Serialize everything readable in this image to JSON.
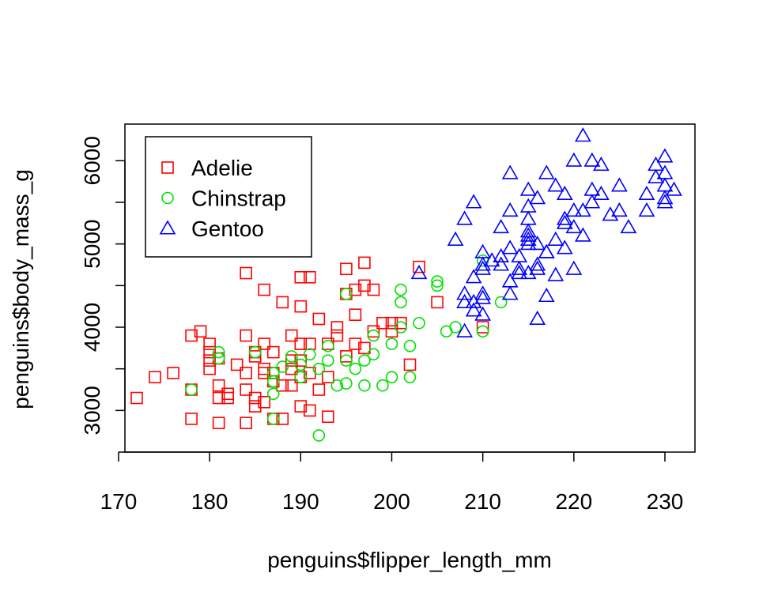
{
  "chart_data": {
    "type": "scatter",
    "title": "",
    "xlabel": "penguins$flipper_length_mm",
    "ylabel": "penguins$body_mass_g",
    "xlim": [
      170.7,
      233.3
    ],
    "ylim": [
      2500,
      6440
    ],
    "x_ticks": [
      170,
      180,
      190,
      200,
      210,
      220,
      230
    ],
    "y_ticks": [
      3000,
      4000,
      5000,
      6000
    ],
    "grid": false,
    "legend_position": "top-left",
    "series": [
      {
        "name": "Adelie",
        "color": "#ff0000",
        "marker": "square",
        "points": [
          [
            172,
            3150
          ],
          [
            174,
            3400
          ],
          [
            176,
            3450
          ],
          [
            178,
            3250
          ],
          [
            178,
            2900
          ],
          [
            178,
            3900
          ],
          [
            179,
            3950
          ],
          [
            180,
            3800
          ],
          [
            180,
            3600
          ],
          [
            180,
            3700
          ],
          [
            180,
            3500
          ],
          [
            181,
            3300
          ],
          [
            181,
            3625
          ],
          [
            181,
            3150
          ],
          [
            181,
            2850
          ],
          [
            182,
            3200
          ],
          [
            182,
            3150
          ],
          [
            183,
            3550
          ],
          [
            184,
            3250
          ],
          [
            184,
            3450
          ],
          [
            184,
            3900
          ],
          [
            184,
            4650
          ],
          [
            184,
            2850
          ],
          [
            185,
            3650
          ],
          [
            185,
            3150
          ],
          [
            185,
            3700
          ],
          [
            185,
            3050
          ],
          [
            186,
            3800
          ],
          [
            186,
            3500
          ],
          [
            186,
            3450
          ],
          [
            186,
            4450
          ],
          [
            186,
            3100
          ],
          [
            187,
            3450
          ],
          [
            187,
            3350
          ],
          [
            187,
            2900
          ],
          [
            187,
            3700
          ],
          [
            188,
            4300
          ],
          [
            188,
            2900
          ],
          [
            188,
            3300
          ],
          [
            189,
            3500
          ],
          [
            189,
            3600
          ],
          [
            189,
            3900
          ],
          [
            189,
            3300
          ],
          [
            190,
            4250
          ],
          [
            190,
            3800
          ],
          [
            190,
            3400
          ],
          [
            190,
            3600
          ],
          [
            190,
            4600
          ],
          [
            190,
            3050
          ],
          [
            191,
            3800
          ],
          [
            191,
            3000
          ],
          [
            191,
            3450
          ],
          [
            191,
            4600
          ],
          [
            192,
            3250
          ],
          [
            192,
            4100
          ],
          [
            193,
            3800
          ],
          [
            193,
            3400
          ],
          [
            193,
            2925
          ],
          [
            194,
            4000
          ],
          [
            194,
            3900
          ],
          [
            195,
            4400
          ],
          [
            195,
            3650
          ],
          [
            195,
            4700
          ],
          [
            196,
            4150
          ],
          [
            196,
            3800
          ],
          [
            196,
            4450
          ],
          [
            197,
            4500
          ],
          [
            197,
            3750
          ],
          [
            197,
            4775
          ],
          [
            198,
            3950
          ],
          [
            198,
            4450
          ],
          [
            199,
            4050
          ],
          [
            200,
            3950
          ],
          [
            200,
            4050
          ],
          [
            201,
            4050
          ],
          [
            202,
            3550
          ],
          [
            203,
            4725
          ],
          [
            205,
            4300
          ],
          [
            210,
            4000
          ]
        ]
      },
      {
        "name": "Chinstrap",
        "color": "#00e000",
        "marker": "circle",
        "points": [
          [
            178,
            3250
          ],
          [
            181,
            3625
          ],
          [
            181,
            3700
          ],
          [
            185,
            3700
          ],
          [
            187,
            3200
          ],
          [
            187,
            3450
          ],
          [
            187,
            3350
          ],
          [
            187,
            2900
          ],
          [
            188,
            3525
          ],
          [
            189,
            3650
          ],
          [
            190,
            3400
          ],
          [
            190,
            3550
          ],
          [
            191,
            3675
          ],
          [
            192,
            2700
          ],
          [
            192,
            3500
          ],
          [
            193,
            3775
          ],
          [
            193,
            3600
          ],
          [
            194,
            3300
          ],
          [
            195,
            3325
          ],
          [
            195,
            3600
          ],
          [
            195,
            4400
          ],
          [
            196,
            3500
          ],
          [
            197,
            3300
          ],
          [
            197,
            3600
          ],
          [
            198,
            3900
          ],
          [
            198,
            3675
          ],
          [
            199,
            3300
          ],
          [
            200,
            3400
          ],
          [
            200,
            3800
          ],
          [
            201,
            4300
          ],
          [
            201,
            4450
          ],
          [
            201,
            4000
          ],
          [
            202,
            3775
          ],
          [
            202,
            3400
          ],
          [
            203,
            4050
          ],
          [
            205,
            4550
          ],
          [
            205,
            4500
          ],
          [
            206,
            3950
          ],
          [
            207,
            4000
          ],
          [
            210,
            4800
          ],
          [
            210,
            3950
          ],
          [
            212,
            4300
          ]
        ]
      },
      {
        "name": "Gentoo",
        "color": "#0000ff",
        "marker": "triangle",
        "points": [
          [
            203,
            4650
          ],
          [
            207,
            5050
          ],
          [
            208,
            4300
          ],
          [
            208,
            3950
          ],
          [
            208,
            4400
          ],
          [
            208,
            5300
          ],
          [
            209,
            4200
          ],
          [
            209,
            4600
          ],
          [
            209,
            4300
          ],
          [
            209,
            5500
          ],
          [
            210,
            4700
          ],
          [
            210,
            4750
          ],
          [
            210,
            4900
          ],
          [
            210,
            4350
          ],
          [
            210,
            4150
          ],
          [
            210,
            4400
          ],
          [
            211,
            4800
          ],
          [
            212,
            4850
          ],
          [
            212,
            4750
          ],
          [
            212,
            5200
          ],
          [
            213,
            4550
          ],
          [
            213,
            4950
          ],
          [
            213,
            5400
          ],
          [
            213,
            5850
          ],
          [
            213,
            4400
          ],
          [
            214,
            4850
          ],
          [
            214,
            4700
          ],
          [
            214,
            4650
          ],
          [
            215,
            5000
          ],
          [
            215,
            5150
          ],
          [
            215,
            5100
          ],
          [
            215,
            4650
          ],
          [
            215,
            5450
          ],
          [
            215,
            5650
          ],
          [
            215,
            5050
          ],
          [
            215,
            5300
          ],
          [
            216,
            5000
          ],
          [
            216,
            4750
          ],
          [
            216,
            4700
          ],
          [
            216,
            4100
          ],
          [
            216,
            5550
          ],
          [
            217,
            4900
          ],
          [
            217,
            4900
          ],
          [
            217,
            5850
          ],
          [
            217,
            4375
          ],
          [
            218,
            5700
          ],
          [
            218,
            5050
          ],
          [
            218,
            4625
          ],
          [
            219,
            5300
          ],
          [
            219,
            5250
          ],
          [
            219,
            4950
          ],
          [
            219,
            5600
          ],
          [
            220,
            6000
          ],
          [
            220,
            5200
          ],
          [
            220,
            4700
          ],
          [
            220,
            5400
          ],
          [
            221,
            5100
          ],
          [
            221,
            6300
          ],
          [
            221,
            5400
          ],
          [
            222,
            5650
          ],
          [
            222,
            5500
          ],
          [
            222,
            6000
          ],
          [
            223,
            5950
          ],
          [
            223,
            5600
          ],
          [
            224,
            5350
          ],
          [
            225,
            5400
          ],
          [
            225,
            5700
          ],
          [
            226,
            5200
          ],
          [
            228,
            5400
          ],
          [
            228,
            5600
          ],
          [
            229,
            5950
          ],
          [
            229,
            5800
          ],
          [
            230,
            5700
          ],
          [
            230,
            5850
          ],
          [
            230,
            5550
          ],
          [
            230,
            6050
          ],
          [
            230,
            5500
          ],
          [
            231,
            5650
          ]
        ]
      }
    ]
  }
}
